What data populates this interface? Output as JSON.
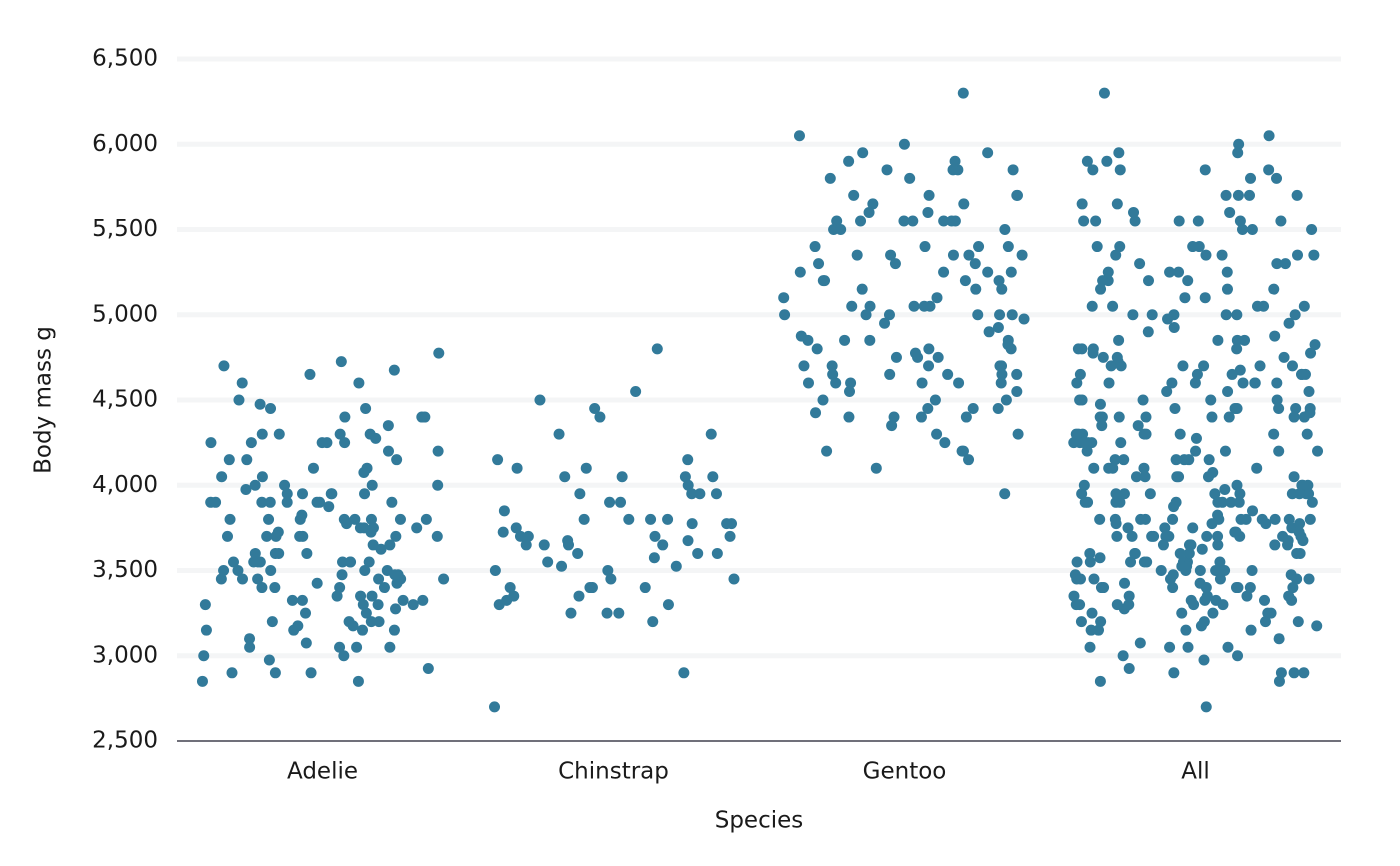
{
  "chart_data": {
    "type": "strip",
    "xlabel": "Species",
    "ylabel": "Body mass g",
    "categories": [
      "Adelie",
      "Chinstrap",
      "Gentoo",
      "All"
    ],
    "color": "#327a9a",
    "grid": true,
    "ylim": [
      2500,
      6500
    ],
    "yticks": [
      {
        "value": 2500,
        "label": "2,500"
      },
      {
        "value": 3000,
        "label": "3,000"
      },
      {
        "value": 3500,
        "label": "3,500"
      },
      {
        "value": 4000,
        "label": "4,000"
      },
      {
        "value": 4500,
        "label": "4,500"
      },
      {
        "value": 5000,
        "label": "5,000"
      },
      {
        "value": 5500,
        "label": "5,500"
      },
      {
        "value": 6000,
        "label": "6,000"
      },
      {
        "value": 6500,
        "label": "6,500"
      }
    ],
    "values": [
      [
        3750,
        3800,
        3250,
        3450,
        3650,
        3625,
        4675,
        3475,
        4250,
        3300,
        3700,
        3200,
        3800,
        4400,
        3700,
        3450,
        4500,
        3325,
        4200,
        3400,
        3600,
        3800,
        3950,
        3800,
        3800,
        3550,
        3200,
        3150,
        3950,
        3250,
        3900,
        3300,
        3900,
        3325,
        4150,
        3950,
        3550,
        3300,
        4650,
        3150,
        3900,
        3100,
        4400,
        3000,
        4600,
        3425,
        2975,
        3450,
        4150,
        3500,
        4300,
        3450,
        4050,
        2900,
        3700,
        3550,
        3800,
        2850,
        3750,
        3150,
        4400,
        3600,
        4050,
        2850,
        3950,
        3350,
        4100,
        3050,
        4450,
        3600,
        3900,
        3550,
        4150,
        3700,
        4250,
        3700,
        3900,
        3550,
        4000,
        3200,
        4700,
        3800,
        4200,
        3350,
        3550,
        3800,
        3500,
        3950,
        3600,
        3550,
        4300,
        3400,
        4450,
        3300,
        4300,
        3700,
        4350,
        2900,
        4100,
        3725,
        4725,
        3075,
        4250,
        2925,
        3550,
        3750,
        3900,
        3175,
        4775,
        3825,
        4600,
        3200,
        4275,
        3900,
        4075,
        2900,
        3775,
        3350,
        3325,
        3150,
        3500,
        3450,
        3875,
        3050,
        4000,
        3275,
        4300,
        3050,
        4000,
        3325,
        3500,
        3500,
        4475,
        3425,
        3900,
        3175,
        3975,
        3400,
        4250,
        3400,
        3475,
        3050,
        3725,
        3000,
        3650,
        4250,
        3475,
        3450,
        3750,
        3700,
        4000
      ],
      [
        3500,
        3900,
        3650,
        3525,
        3725,
        3950,
        3250,
        3750,
        4150,
        3700,
        3800,
        3775,
        3700,
        4050,
        3575,
        4050,
        3300,
        3700,
        3450,
        4400,
        3600,
        3400,
        2900,
        3800,
        3300,
        4150,
        3400,
        3800,
        3700,
        4550,
        3200,
        4300,
        3350,
        4100,
        3600,
        3900,
        3850,
        4800,
        2700,
        4500,
        3950,
        3650,
        3550,
        3500,
        3675,
        4450,
        3400,
        4300,
        3250,
        3675,
        3325,
        3950,
        3600,
        4050,
        3350,
        3450,
        3250,
        4050,
        3800,
        3525,
        3950,
        3650,
        3650,
        4000,
        3400,
        3775,
        4100,
        3775
      ],
      [
        4500,
        5700,
        4450,
        5700,
        5400,
        4550,
        4800,
        5200,
        4400,
        5150,
        4650,
        5550,
        4650,
        5850,
        4200,
        5850,
        4150,
        6300,
        4800,
        5350,
        5700,
        5000,
        4400,
        5050,
        5000,
        5100,
        4100,
        5650,
        4600,
        5550,
        5250,
        4700,
        5050,
        6050,
        5150,
        5400,
        4950,
        5250,
        4350,
        5350,
        3950,
        5700,
        4300,
        4750,
        5550,
        4900,
        4200,
        5400,
        5100,
        5300,
        4850,
        5300,
        4400,
        5000,
        4600,
        5050,
        4250,
        5650,
        4700,
        5350,
        4500,
        5800,
        4700,
        5550,
        4600,
        5600,
        4650,
        5900,
        4800,
        5950,
        4650,
        6000,
        5000,
        5550,
        4600,
        5200,
        4750,
        4975,
        5400,
        4550,
        5550,
        4450,
        5600,
        4300,
        5900,
        4700,
        5350,
        4500,
        5850,
        4650,
        5800,
        5350,
        5300,
        4425,
        5500,
        4850,
        5200,
        4400,
        5050,
        4700,
        5000,
        5500,
        4850,
        5550,
        4600,
        5250,
        4450,
        5000,
        4850,
        5950,
        4825,
        5200,
        4775,
        5050,
        4925,
        5500,
        4875,
        5150,
        4600,
        5250,
        4200,
        5850,
        4750
      ],
      [
        3750,
        3800,
        3250,
        3450,
        3650,
        3625,
        4675,
        3475,
        4250,
        3300,
        3700,
        3200,
        3800,
        4400,
        3700,
        3450,
        4500,
        3325,
        4200,
        3400,
        3600,
        3800,
        3950,
        3800,
        3800,
        3550,
        3200,
        3150,
        3950,
        3250,
        3900,
        3300,
        3900,
        3325,
        4150,
        3950,
        3550,
        3300,
        4650,
        3150,
        3900,
        3100,
        4400,
        3000,
        4600,
        3425,
        2975,
        3450,
        4150,
        3500,
        4300,
        3450,
        4050,
        2900,
        3700,
        3550,
        3800,
        2850,
        3750,
        3150,
        4400,
        3600,
        4050,
        2850,
        3950,
        3350,
        4100,
        3050,
        4450,
        3600,
        3900,
        3550,
        4150,
        3700,
        4250,
        3700,
        3900,
        3550,
        4000,
        3200,
        4700,
        3800,
        4200,
        3350,
        3550,
        3800,
        3500,
        3950,
        3600,
        3550,
        4300,
        3400,
        4450,
        3300,
        4300,
        3700,
        4350,
        2900,
        4100,
        3725,
        4725,
        3075,
        4250,
        2925,
        3550,
        3750,
        3900,
        3175,
        4775,
        3825,
        4600,
        3200,
        4275,
        3900,
        4075,
        2900,
        3775,
        3350,
        3325,
        3150,
        3500,
        3450,
        3875,
        3050,
        4000,
        3275,
        4300,
        3050,
        4000,
        3325,
        3500,
        3500,
        4475,
        3425,
        3900,
        3175,
        3975,
        3400,
        4250,
        3400,
        3475,
        3050,
        3725,
        3000,
        3650,
        4250,
        3475,
        3450,
        3750,
        3700,
        4000,
        3500,
        3900,
        3650,
        3525,
        3725,
        3950,
        3250,
        3750,
        4150,
        3700,
        3800,
        3775,
        3700,
        4050,
        3575,
        4050,
        3300,
        3700,
        3450,
        4400,
        3600,
        3400,
        2900,
        3800,
        3300,
        4150,
        3400,
        3800,
        3700,
        4550,
        3200,
        4300,
        3350,
        4100,
        3600,
        3900,
        3850,
        4800,
        2700,
        4500,
        3950,
        3650,
        3550,
        3500,
        3675,
        4450,
        3400,
        4300,
        3250,
        3675,
        3325,
        3950,
        3600,
        4050,
        3350,
        3450,
        3250,
        4050,
        3800,
        3525,
        3950,
        3650,
        3650,
        4000,
        3400,
        3775,
        4100,
        3775,
        4500,
        5700,
        4450,
        5700,
        5400,
        4550,
        4800,
        5200,
        4400,
        5150,
        4650,
        5550,
        4650,
        5850,
        4200,
        5850,
        4150,
        6300,
        4800,
        5350,
        5700,
        5000,
        4400,
        5050,
        5000,
        5100,
        4100,
        5650,
        4600,
        5550,
        5250,
        4700,
        5050,
        6050,
        5150,
        5400,
        4950,
        5250,
        4350,
        5350,
        3950,
        5700,
        4300,
        4750,
        5550,
        4900,
        4200,
        5400,
        5100,
        5300,
        4850,
        5300,
        4400,
        5000,
        4600,
        5050,
        4250,
        5650,
        4700,
        5350,
        4500,
        5800,
        4700,
        5550,
        4600,
        5600,
        4650,
        5900,
        4800,
        5950,
        4650,
        6000,
        5000,
        5550,
        4600,
        5200,
        4750,
        4975,
        5400,
        4550,
        5550,
        4450,
        5600,
        4300,
        5900,
        4700,
        5350,
        4500,
        5850,
        4650,
        5800,
        5350,
        5300,
        4425,
        5500,
        4850,
        5200,
        4400,
        5050,
        4700,
        5000,
        5500,
        4850,
        5550,
        4600,
        5250,
        4450,
        5000,
        4850,
        5950,
        4825,
        5200,
        4775,
        5050,
        4925,
        5500,
        4875,
        5150,
        4600,
        5250,
        4200,
        5850,
        4750
      ]
    ]
  }
}
